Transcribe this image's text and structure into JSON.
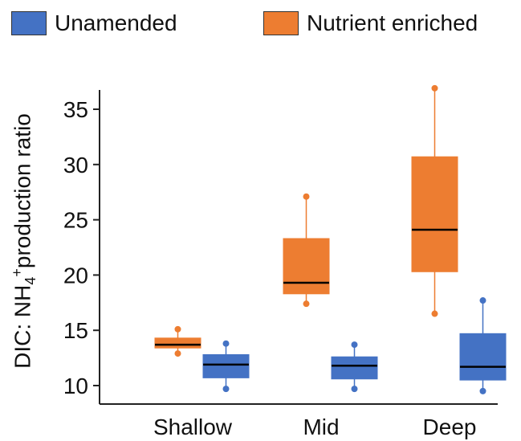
{
  "legend": {
    "items": [
      {
        "label": "Unamended",
        "color": "#4472C4"
      },
      {
        "label": "Nutrient enriched",
        "color": "#ED7D31"
      }
    ]
  },
  "y_axis_label": {
    "main": "DIC: NH",
    "sub": "4",
    "sup": "+",
    "tail": "production ratio"
  },
  "chart_data": {
    "type": "boxplot",
    "categories": [
      "Shallow",
      "Mid",
      "Deep"
    ],
    "ylim": [
      8.5,
      37
    ],
    "yticks": [
      10,
      15,
      20,
      25,
      30,
      35
    ],
    "grid": false,
    "legend_position": "top",
    "series": [
      {
        "name": "Nutrient enriched",
        "color": "#ED7D31",
        "boxes": [
          {
            "min": 12.9,
            "q1": 13.4,
            "median": 13.7,
            "q3": 14.3,
            "max": 15.1
          },
          {
            "min": 17.4,
            "q1": 18.3,
            "median": 19.3,
            "q3": 23.3,
            "max": 27.1
          },
          {
            "min": 16.5,
            "q1": 20.3,
            "median": 24.1,
            "q3": 30.7,
            "max": 36.9
          }
        ]
      },
      {
        "name": "Unamended",
        "color": "#4472C4",
        "boxes": [
          {
            "min": 9.7,
            "q1": 10.7,
            "median": 11.9,
            "q3": 12.8,
            "max": 13.8
          },
          {
            "min": 9.7,
            "q1": 10.6,
            "median": 11.8,
            "q3": 12.6,
            "max": 13.7
          },
          {
            "min": 9.5,
            "q1": 10.5,
            "median": 11.7,
            "q3": 14.7,
            "max": 17.7
          }
        ]
      }
    ]
  }
}
